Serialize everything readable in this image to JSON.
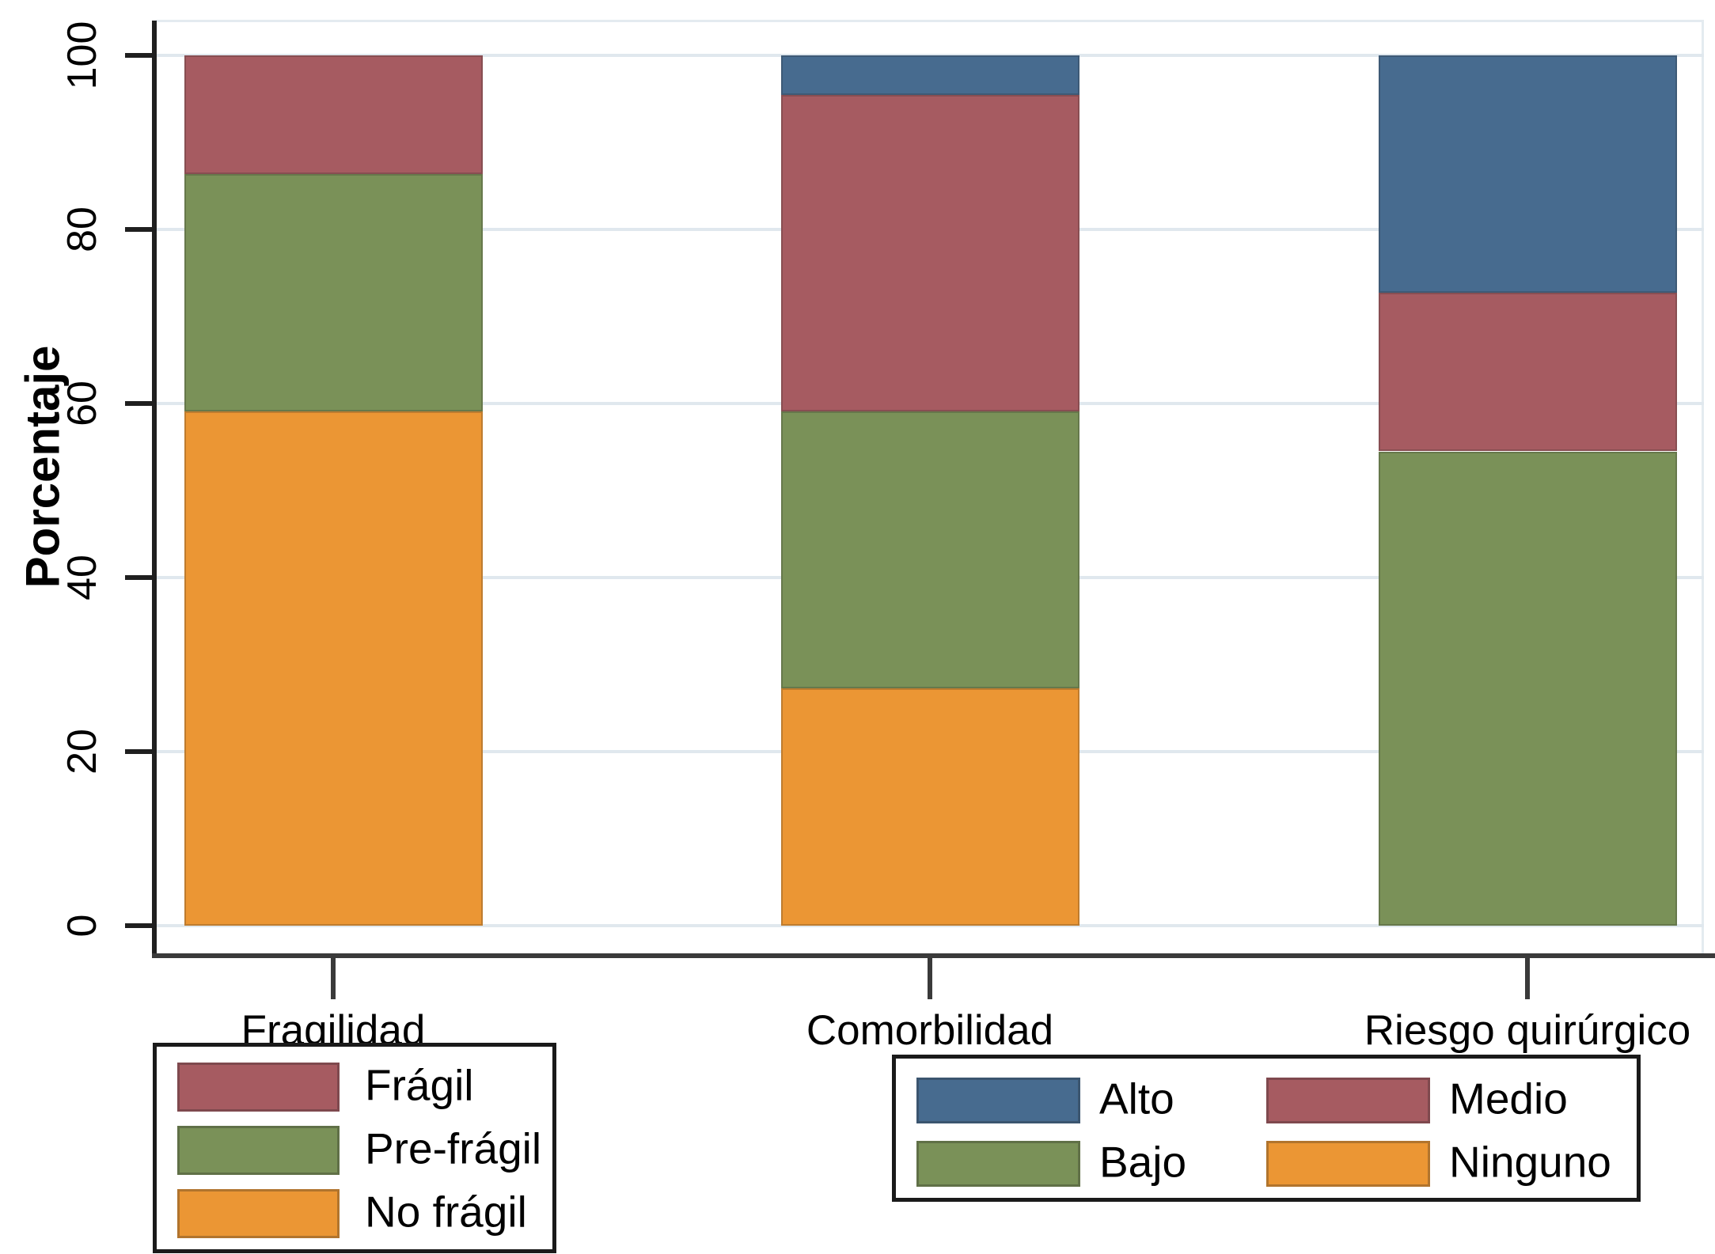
{
  "figure": {
    "background_color": "#ffffff",
    "ylabel": "Porcentaje"
  },
  "colors": {
    "blue": "#476b8f",
    "maroon": "#a65b61",
    "green": "#7a9158",
    "orange": "#eb9634",
    "gridline": "#e0e8ee",
    "axis": "#1f1f1f",
    "text": "#000000"
  },
  "chart_data": {
    "type": "bar",
    "stacked": true,
    "title": "",
    "xlabel": "",
    "ylabel": "Porcentaje",
    "ylim": [
      0,
      100
    ],
    "yticks": [
      0,
      20,
      40,
      60,
      80,
      100
    ],
    "grid": "horizontal",
    "categories": [
      "Fragilidad",
      "Comorbilidad",
      "Riesgo quirúrgico"
    ],
    "bars": [
      {
        "category": "Fragilidad",
        "segments": [
          {
            "label": "No frágil",
            "color_key": "orange",
            "value": 59.1
          },
          {
            "label": "Pre-frágil",
            "color_key": "green",
            "value": 27.3
          },
          {
            "label": "Frágil",
            "color_key": "maroon",
            "value": 13.6
          }
        ]
      },
      {
        "category": "Comorbilidad",
        "segments": [
          {
            "label": "Ninguno",
            "color_key": "orange",
            "value": 27.3
          },
          {
            "label": "Bajo",
            "color_key": "green",
            "value": 31.8
          },
          {
            "label": "Medio",
            "color_key": "maroon",
            "value": 36.4
          },
          {
            "label": "Alto",
            "color_key": "blue",
            "value": 4.5
          }
        ]
      },
      {
        "category": "Riesgo quirúrgico",
        "segments": [
          {
            "label": "Bajo",
            "color_key": "green",
            "value": 54.5
          },
          {
            "label": "Medio",
            "color_key": "maroon",
            "value": 18.2
          },
          {
            "label": "Alto",
            "color_key": "blue",
            "value": 27.3
          }
        ]
      }
    ],
    "legend_left": {
      "items": [
        {
          "label": "Frágil",
          "color_key": "maroon"
        },
        {
          "label": "Pre-frágil",
          "color_key": "green"
        },
        {
          "label": "No frágil",
          "color_key": "orange"
        }
      ]
    },
    "legend_right": {
      "items": [
        {
          "label": "Alto",
          "color_key": "blue"
        },
        {
          "label": "Medio",
          "color_key": "maroon"
        },
        {
          "label": "Bajo",
          "color_key": "green"
        },
        {
          "label": "Ninguno",
          "color_key": "orange"
        }
      ]
    }
  }
}
